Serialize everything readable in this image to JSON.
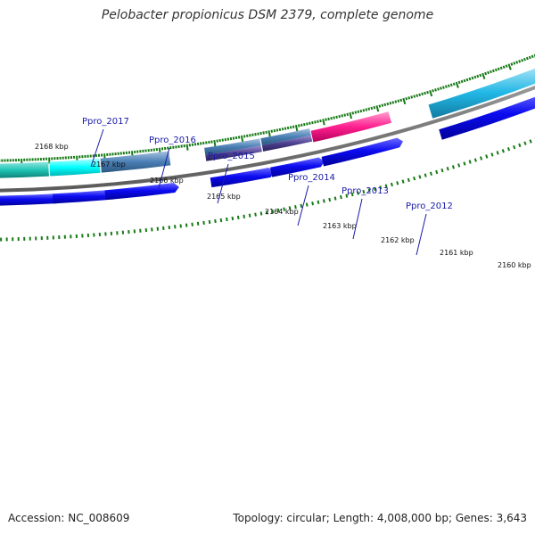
{
  "title": "Pelobacter propionicus DSM 2379, complete genome",
  "footer": {
    "accession": "Accession: NC_008609",
    "summary": "Topology: circular; Length: 4,008,000 bp; Genes: 3,643"
  },
  "ticks": [
    "2168 kbp",
    "2167 kbp",
    "2166 kbp",
    "2165 kbp",
    "2164 kbp",
    "2163 kbp",
    "2162 kbp",
    "2161 kbp",
    "2160 kbp"
  ],
  "genes": [
    "Ppro_2017",
    "Ppro_2016",
    "Ppro_2015",
    "Ppro_2014",
    "Ppro_2013",
    "Ppro_2012"
  ],
  "colors": {
    "cds_blue": "#0b0bf0",
    "teal": "#1fc4b4",
    "cyan": "#00ffff",
    "steel": "#4a7fb5",
    "slate": "#4b3f8f",
    "magenta": "#ff1f8f",
    "sky": "#22b8e6",
    "red": "#ff0000",
    "backbone": "#7f7f7f",
    "tick_green": "#167a16",
    "label_blue": "#1a1aa8"
  }
}
